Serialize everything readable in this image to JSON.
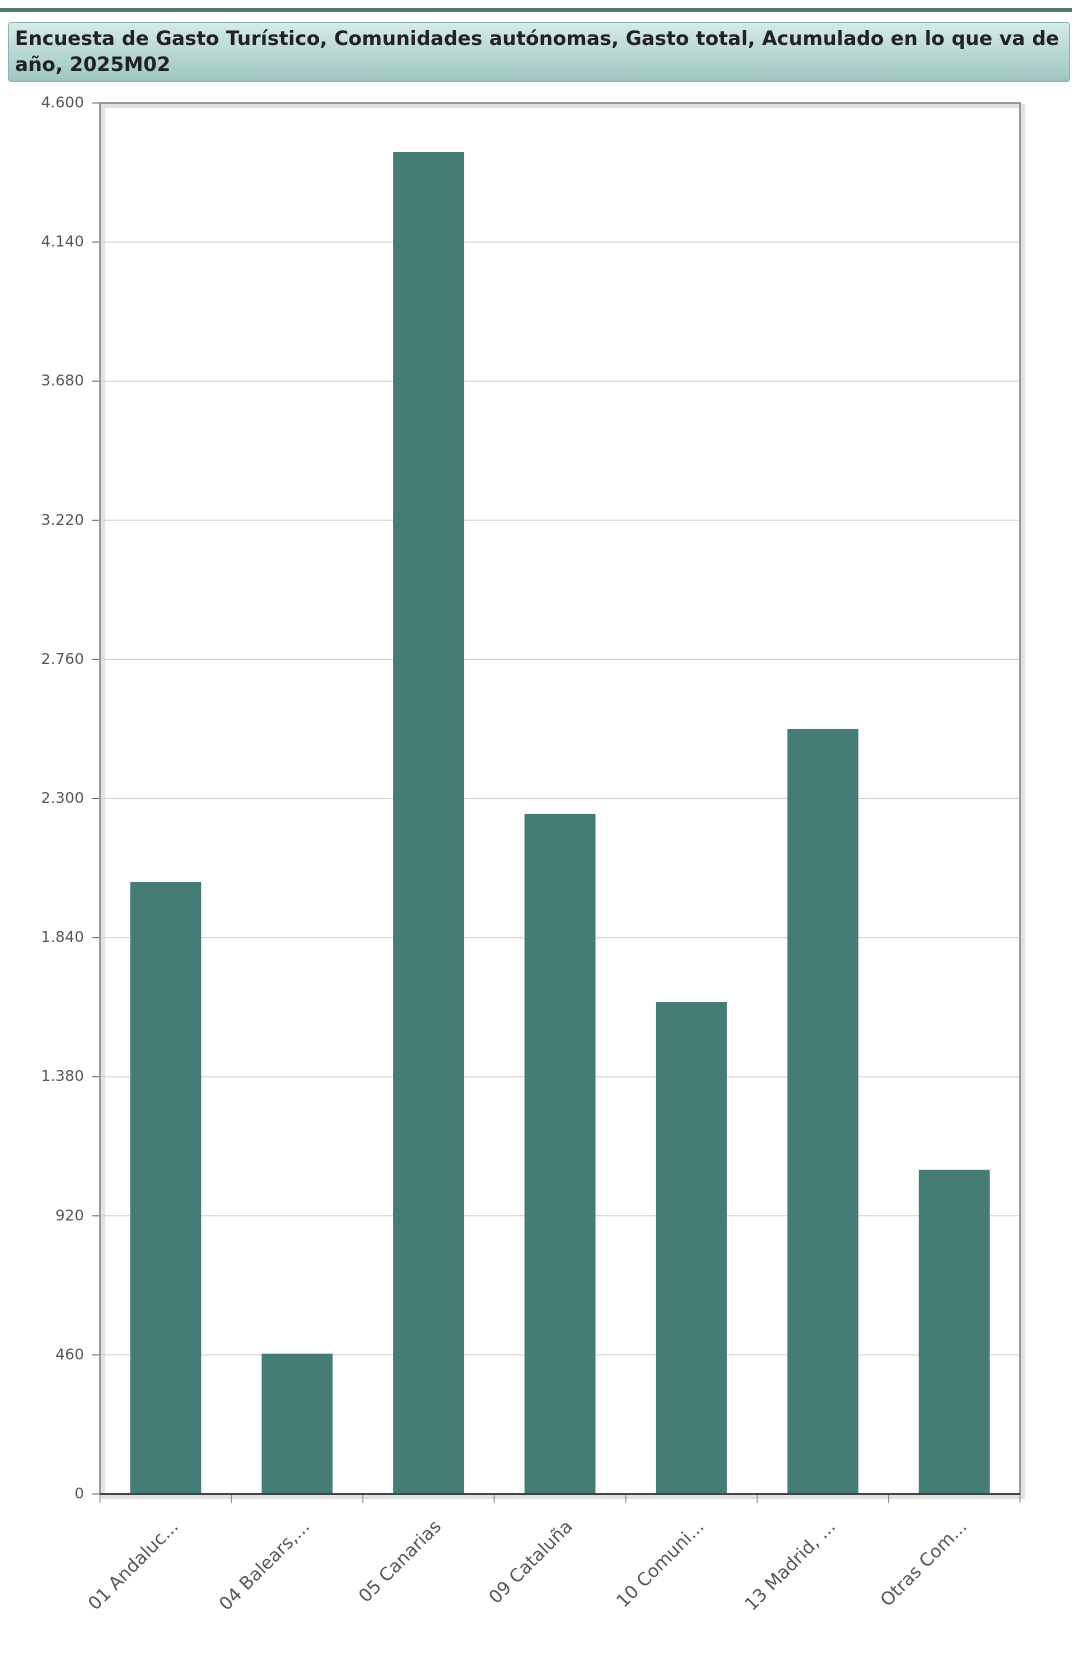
{
  "chart_data": {
    "type": "bar",
    "title": "Encuesta de Gasto Turístico, Comunidades autónomas, Gasto total, Acumulado en lo que va de año, 2025M02",
    "categories": [
      "01 Andaluc...",
      "04 Balears,...",
      "05 Canarias",
      "09 Cataluña",
      "10 Comuni...",
      "13 Madrid, ...",
      "Otras Com..."
    ],
    "values": [
      2024,
      464,
      4438,
      2249,
      1627,
      2530,
      1072
    ],
    "color": "#457c75",
    "ylim": [
      0,
      4600
    ],
    "yticks": [
      0,
      460,
      920,
      {
        "value": 1380,
        "label": "1.380"
      },
      {
        "value": 1840,
        "label": "1.840"
      },
      {
        "value": 2300,
        "label": "2.300"
      },
      {
        "value": 2760,
        "label": "2.760"
      },
      {
        "value": 3220,
        "label": "3.220"
      },
      {
        "value": 3680,
        "label": "3.680"
      },
      {
        "value": 4140,
        "label": "4.140"
      },
      {
        "value": 4600,
        "label": "4.600"
      }
    ],
    "grid": true
  }
}
